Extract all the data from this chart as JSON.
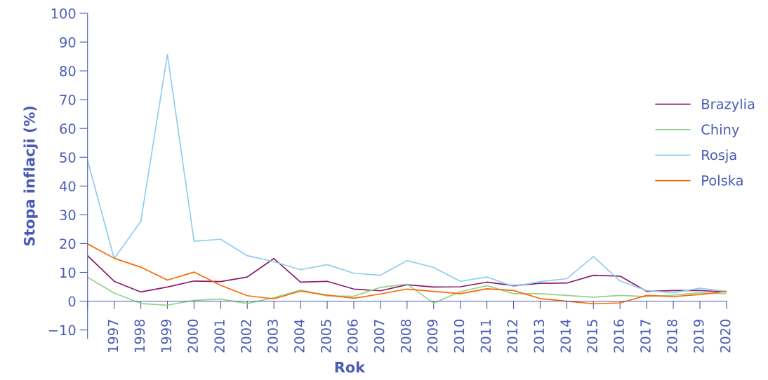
{
  "chart_data": {
    "type": "line",
    "xlabel": "Rok",
    "ylabel": "Stopa inflacji (%)",
    "x": [
      1996,
      1997,
      1998,
      1999,
      2000,
      2001,
      2002,
      2003,
      2004,
      2005,
      2006,
      2007,
      2008,
      2009,
      2010,
      2011,
      2012,
      2013,
      2014,
      2015,
      2016,
      2017,
      2018,
      2019,
      2020
    ],
    "series": [
      {
        "name": "Brazylia",
        "color": "#8b1a6b",
        "values": [
          15.8,
          6.9,
          3.2,
          4.9,
          7.0,
          6.8,
          8.4,
          14.8,
          6.6,
          6.9,
          4.2,
          3.6,
          5.7,
          4.9,
          5.0,
          6.6,
          5.4,
          6.2,
          6.3,
          9.0,
          8.7,
          3.4,
          3.7,
          3.7,
          3.2
        ]
      },
      {
        "name": "Chiny",
        "color": "#90d48a",
        "values": [
          8.3,
          2.8,
          -0.8,
          -1.4,
          0.3,
          0.7,
          -0.8,
          1.2,
          3.9,
          1.8,
          1.7,
          4.8,
          5.9,
          -0.7,
          3.3,
          5.4,
          2.6,
          2.6,
          2.0,
          1.4,
          2.0,
          1.6,
          2.1,
          2.9,
          2.5
        ]
      },
      {
        "name": "Rosja",
        "color": "#8ecdf0",
        "values": [
          48.9,
          14.8,
          27.7,
          85.7,
          20.8,
          21.5,
          15.8,
          13.7,
          10.9,
          12.7,
          9.7,
          9.0,
          14.1,
          11.7,
          6.9,
          8.4,
          5.1,
          6.8,
          7.8,
          15.5,
          7.0,
          3.7,
          2.9,
          4.5,
          3.4
        ]
      },
      {
        "name": "Polska",
        "color": "#ff6600",
        "values": [
          19.9,
          14.9,
          11.8,
          7.3,
          10.1,
          5.5,
          1.9,
          0.8,
          3.5,
          2.1,
          1.0,
          2.5,
          4.2,
          3.4,
          2.6,
          4.3,
          3.7,
          0.9,
          0.0,
          -0.9,
          -0.6,
          2.0,
          1.6,
          2.3,
          3.4
        ]
      }
    ],
    "xlim": [
      1996,
      2020
    ],
    "xticks": [
      {
        "value": 1996,
        "label": null
      },
      1997,
      1998,
      1999,
      2000,
      2001,
      2002,
      2003,
      2004,
      2005,
      2006,
      2007,
      2008,
      2009,
      2010,
      2011,
      2012,
      2013,
      2014,
      2015,
      2016,
      2017,
      2018,
      2019,
      2020
    ],
    "ylim": [
      -13,
      100
    ],
    "yticks": [
      {
        "value": -10,
        "label": "−10"
      },
      0,
      10,
      20,
      30,
      40,
      50,
      60,
      70,
      80,
      90,
      100
    ],
    "grid": false,
    "legend": "right",
    "marker": "none",
    "line_style": "solid"
  }
}
